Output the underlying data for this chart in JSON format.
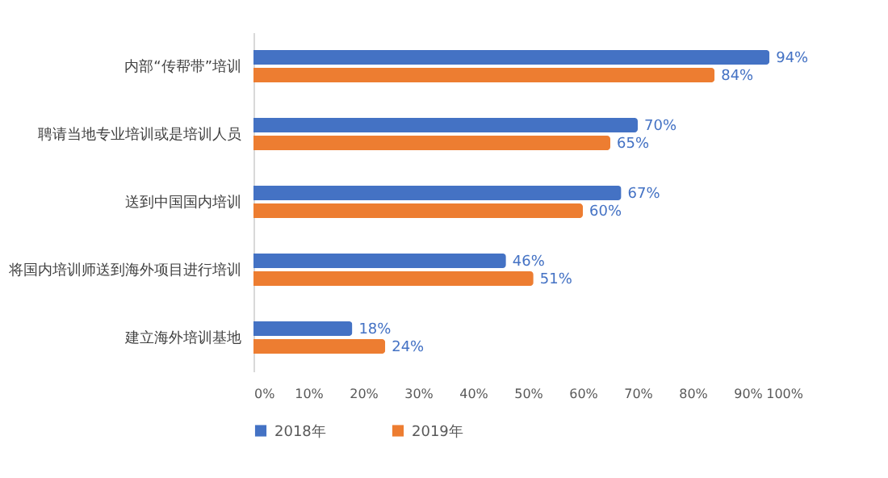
{
  "chart_data": {
    "type": "bar",
    "orientation": "horizontal",
    "categories": [
      "内部“传帮带”培训",
      "聘请当地专业培训或是培训人员",
      "送到中国国内培训",
      "将国内培训师送到海外项目进行培训",
      "建立海外培训基地"
    ],
    "series": [
      {
        "name": "2018年",
        "color": "#4472c4",
        "values": [
          94,
          70,
          67,
          46,
          18
        ],
        "value_labels": [
          "94%",
          "70%",
          "67%",
          "46%",
          "18%"
        ]
      },
      {
        "name": "2019年",
        "color": "#ed7d31",
        "values": [
          84,
          65,
          60,
          51,
          24
        ],
        "value_labels": [
          "84%",
          "65%",
          "60%",
          "51%",
          "24%"
        ]
      }
    ],
    "xlim": [
      0,
      100
    ],
    "xticks": [
      {
        "value": 0,
        "label": "0%"
      },
      {
        "value": 10,
        "label": "10%"
      },
      {
        "value": 20,
        "label": "20%"
      },
      {
        "value": 30,
        "label": "30%"
      },
      {
        "value": 40,
        "label": "40%"
      },
      {
        "value": 50,
        "label": "50%"
      },
      {
        "value": 60,
        "label": "60%"
      },
      {
        "value": 70,
        "label": "70%"
      },
      {
        "value": 80,
        "label": "80%"
      },
      {
        "value": 90,
        "label": "90%"
      },
      {
        "value": 100,
        "label": "100%"
      }
    ],
    "grid": false,
    "legend": "bottom"
  }
}
